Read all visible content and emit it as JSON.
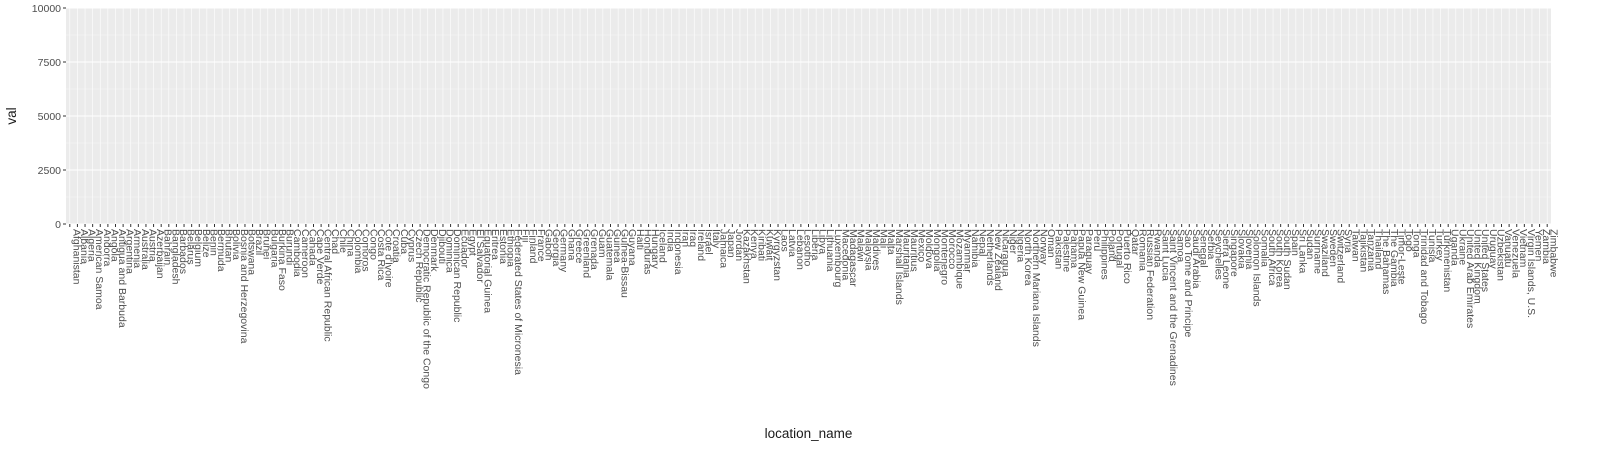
{
  "chart_data": {
    "type": "boxplot",
    "xlabel": "location_name",
    "ylabel": "val",
    "ylim": [
      0,
      10000
    ],
    "yticks": [
      0,
      2500,
      5000,
      7500,
      10000
    ],
    "ytick_labels": [
      "0",
      "2500",
      "5000",
      "7500",
      "10000"
    ],
    "grid": true,
    "legend": "none",
    "categories": [
      "Afghanistan",
      "Albania",
      "Algeria",
      "American Samoa",
      "Andorra",
      "Angola",
      "Antigua and Barbuda",
      "Argentina",
      "Armenia",
      "Australia",
      "Austria",
      "Azerbaijan",
      "Bahrain",
      "Bangladesh",
      "Barbados",
      "Belarus",
      "Belgium",
      "Belize",
      "Benin",
      "Bermuda",
      "Bhutan",
      "Bolivia",
      "Bosnia and Herzegovina",
      "Botswana",
      "Brazil",
      "Brunei",
      "Bulgaria",
      "Burkina Faso",
      "Burundi",
      "Cambodia",
      "Cameroon",
      "Canada",
      "Cape Verde",
      "Central African Republic",
      "Chad",
      "Chile",
      "China",
      "Colombia",
      "Comoros",
      "Congo",
      "Costa Rica",
      "Cote d'Ivoire",
      "Croatia",
      "Cuba",
      "Cyprus",
      "Czech Republic",
      "Democratic Republic of the Congo",
      "Denmark",
      "Djibouti",
      "Dominica",
      "Dominican Republic",
      "Ecuador",
      "Egypt",
      "El Salvador",
      "Equatorial Guinea",
      "Eritrea",
      "Estonia",
      "Ethiopia",
      "Federated States of Micronesia",
      "Fiji",
      "Finland",
      "France",
      "Gabon",
      "Georgia",
      "Germany",
      "Ghana",
      "Greece",
      "Greenland",
      "Grenada",
      "Guam",
      "Guatemala",
      "Guinea",
      "Guinea-Bissau",
      "Guyana",
      "Haiti",
      "Honduras",
      "Hungary",
      "Iceland",
      "India",
      "Indonesia",
      "Iran",
      "Iraq",
      "Ireland",
      "Israel",
      "Italy",
      "Jamaica",
      "Japan",
      "Jordan",
      "Kazakhstan",
      "Kenya",
      "Kiribati",
      "Kuwait",
      "Kyrgyzstan",
      "Laos",
      "Latvia",
      "Lebanon",
      "Lesotho",
      "Liberia",
      "Libya",
      "Lithuania",
      "Luxembourg",
      "Macedonia",
      "Madagascar",
      "Malawi",
      "Malaysia",
      "Maldives",
      "Mali",
      "Malta",
      "Marshall Islands",
      "Mauritania",
      "Mauritius",
      "Mexico",
      "Moldova",
      "Mongolia",
      "Montenegro",
      "Morocco",
      "Mozambique",
      "Myanmar",
      "Namibia",
      "Nepal",
      "Netherlands",
      "New Zealand",
      "Nicaragua",
      "Niger",
      "Nigeria",
      "North Korea",
      "Northern Mariana Islands",
      "Norway",
      "Oman",
      "Pakistan",
      "Palestine",
      "Panama",
      "Papua New Guinea",
      "Paraguay",
      "Peru",
      "Philippines",
      "Poland",
      "Portugal",
      "Puerto Rico",
      "Qatar",
      "Romania",
      "Russian Federation",
      "Rwanda",
      "Saint Lucia",
      "Saint Vincent and the Grenadines",
      "Samoa",
      "Sao Tome and Principe",
      "Saudi Arabia",
      "Senegal",
      "Serbia",
      "Seychelles",
      "Sierra Leone",
      "Singapore",
      "Slovakia",
      "Slovenia",
      "Solomon Islands",
      "Somalia",
      "South Africa",
      "South Korea",
      "South Sudan",
      "Spain",
      "Sri Lanka",
      "Sudan",
      "Suriname",
      "Swaziland",
      "Sweden",
      "Switzerland",
      "Syria",
      "Taiwan",
      "Tajikistan",
      "Tanzania",
      "Thailand",
      "The Bahamas",
      "The Gambia",
      "Timor-Leste",
      "Togo",
      "Tonga",
      "Trinidad and Tobago",
      "Tunisia",
      "Turkey",
      "Turkmenistan",
      "Uganda",
      "Ukraine",
      "United Arab Emirates",
      "United Kingdom",
      "United States",
      "Uruguay",
      "Uzbekistan",
      "Vanuatu",
      "Venezuela",
      "Vietnam",
      "Virgin Islands, U.S.",
      "Yemen",
      "Zambia",
      "Zimbabwe"
    ],
    "series": []
  }
}
